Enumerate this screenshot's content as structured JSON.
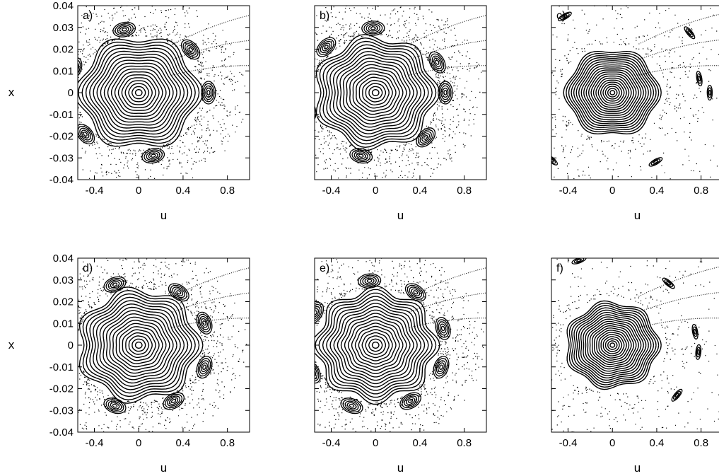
{
  "figure": {
    "panels": [
      {
        "tag": "a)",
        "xlabel": "u",
        "ylabel": "x",
        "style": "mixed",
        "islands": 6,
        "island_angles_deg": [
          42,
          102,
          158,
          220,
          282,
          0
        ]
      },
      {
        "tag": "b)",
        "xlabel": "u",
        "ylabel": "",
        "style": "mixed",
        "islands": 7,
        "island_angles_deg": [
          28,
          92,
          135,
          196,
          258,
          316,
          0
        ]
      },
      {
        "tag": "c)",
        "xlabel": "u",
        "ylabel": "",
        "style": "chaotic",
        "islands": 6,
        "island_angles_deg": [
          10,
          40,
          120,
          230,
          300,
          0
        ]
      },
      {
        "tag": "d)",
        "xlabel": "u",
        "ylabel": "x",
        "style": "mixed",
        "islands": 7,
        "island_angles_deg": [
          20,
          55,
          110,
          180,
          250,
          300,
          340
        ]
      },
      {
        "tag": "e)",
        "xlabel": "u",
        "ylabel": "",
        "style": "mixed",
        "islands": 8,
        "island_angles_deg": [
          15,
          55,
          95,
          150,
          205,
          250,
          300,
          340
        ]
      },
      {
        "tag": "f)",
        "xlabel": "u",
        "ylabel": "",
        "style": "chaotic",
        "islands": 7,
        "island_angles_deg": [
          10,
          50,
          110,
          200,
          250,
          320,
          355
        ]
      }
    ]
  },
  "chart_data": {
    "type": "scatter",
    "description_of_axes": "",
    "x_ticks": [
      -0.4,
      0,
      0.4,
      0.8
    ],
    "y_ticks": [
      0.04,
      0.03,
      0.02,
      0.01,
      0,
      -0.01,
      -0.02,
      -0.03,
      -0.04
    ],
    "x_tick_labels": [
      "-0.4",
      "0",
      "0.4",
      "0.8"
    ],
    "y_tick_labels": [
      "0.04",
      "0.03",
      "0.02",
      "0.01",
      "0",
      "-0.01",
      "-0.02",
      "-0.03",
      "-0.04"
    ],
    "xlim": [
      -0.55,
      1.0
    ],
    "ylim": [
      -0.04,
      0.04
    ],
    "xlabel": "u",
    "ylabel": "x",
    "grid": false,
    "legend": "none",
    "center": {
      "u": 0.0,
      "x": 0.0
    },
    "series_color": "#000000"
  }
}
